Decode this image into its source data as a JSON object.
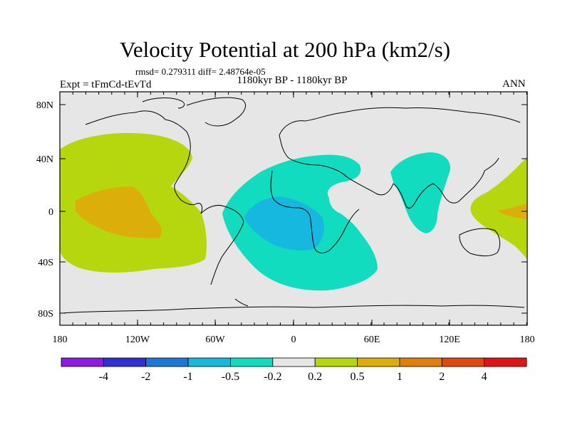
{
  "title": "Velocity Potential at 200 hPa (km2/s)",
  "stats": "rmsd= 0.279311 diff= 2.48764e-05",
  "left_label": "Expt = tFmCd-tEvTd",
  "center_label": "1180kyr BP - 1180kyr BP",
  "right_label": "ANN",
  "lat_ticks": [
    "80N",
    "40N",
    "0",
    "40S",
    "80S"
  ],
  "lon_ticks": [
    "180",
    "120W",
    "60W",
    "0",
    "60E",
    "120E",
    "180"
  ],
  "colorbar": {
    "labels": [
      "-4",
      "-2",
      "-1",
      "-0.5",
      "-0.2",
      "0.2",
      "0.5",
      "1",
      "2",
      "4"
    ],
    "colors": [
      "#8a1ee0",
      "#2f2fd6",
      "#1b78d8",
      "#16b8e0",
      "#12dcc0",
      "#e6e6e6",
      "#b6d60e",
      "#dcae0a",
      "#de7f0e",
      "#e0480e",
      "#e01414"
    ]
  },
  "map_colors": {
    "background": "#e6e6e6",
    "pos_weak": "#b6d60e",
    "pos_mid": "#dcae0a",
    "neg_weak": "#12dcc0",
    "neg_mid": "#16b8e0"
  }
}
